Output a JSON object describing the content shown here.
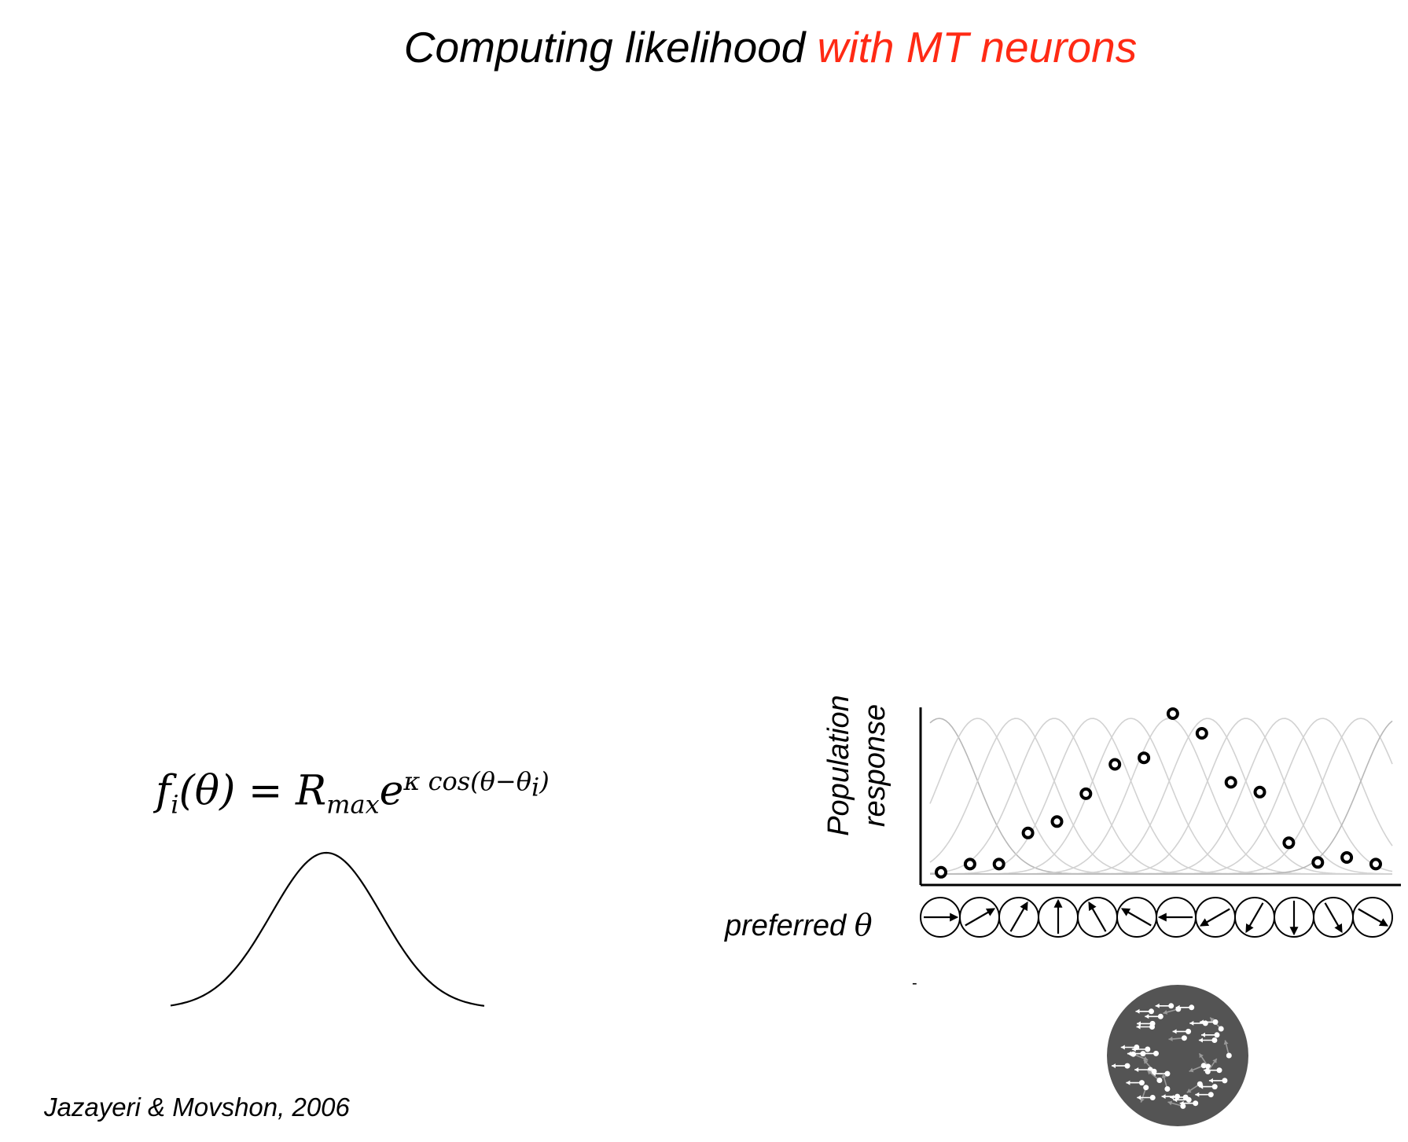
{
  "title": {
    "part1": "Computing likelihood ",
    "part2": "with MT neurons",
    "highlight_color": "#ff2a14"
  },
  "formula": {
    "lhs": "f",
    "lhs_sub": "i",
    "arg": "(θ) = R",
    "r_sub": "max",
    "e": "e",
    "exp": "κ cos(θ−θ",
    "exp_sub": "i",
    "exp_end": ")"
  },
  "citation": "Jazayeri & Movshon, 2006",
  "chart": {
    "ylabel_line1": "Population",
    "ylabel_line2": "response",
    "xlabel": "preferred",
    "xlabel_symbol": "θ",
    "minor_mark": "-"
  },
  "chart_data": {
    "type": "scatter",
    "ylabel": "Population response",
    "xlabel": "preferred θ",
    "points": [
      0.03,
      0.08,
      0.08,
      0.27,
      0.34,
      0.51,
      0.69,
      0.73,
      1.0,
      0.88,
      0.58,
      0.52,
      0.21,
      0.09,
      0.12,
      0.08
    ],
    "tuning_curve_count": 12,
    "preferred_directions_deg": [
      0,
      30,
      60,
      90,
      120,
      150,
      180,
      210,
      240,
      270,
      300,
      330
    ]
  },
  "dot_stimulus": {
    "background": "#545454",
    "coherent_direction": "left",
    "coherent_color": "#ffffff",
    "noise_color": "#9a9a9a"
  }
}
